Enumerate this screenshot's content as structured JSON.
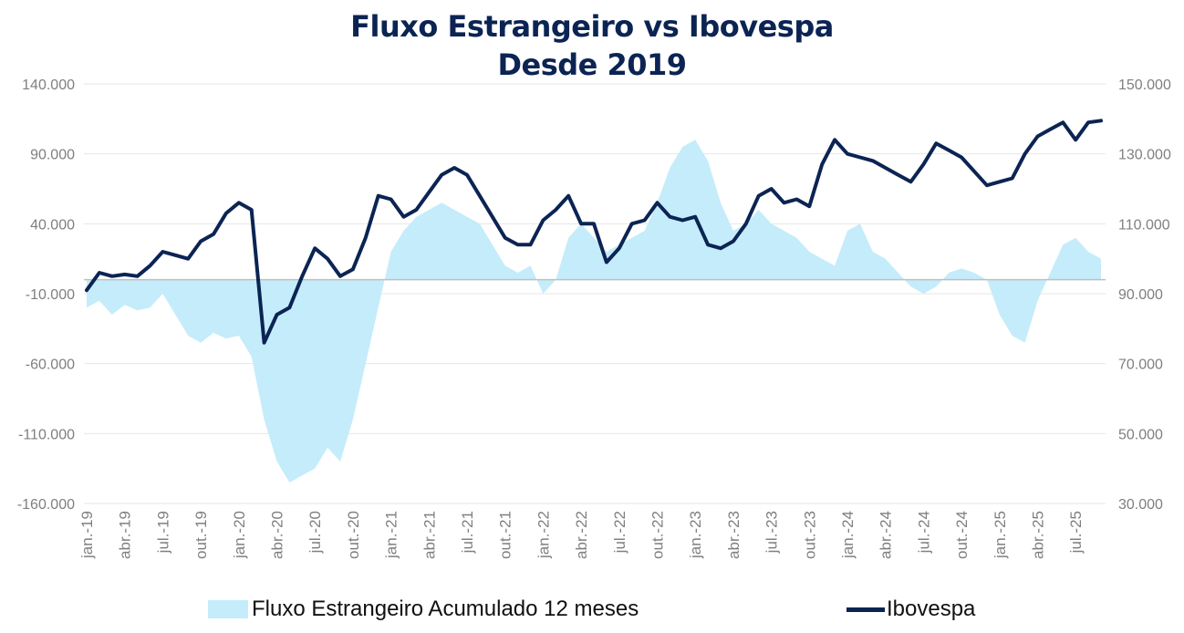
{
  "title": {
    "line1": "Fluxo Estrangeiro vs Ibovespa",
    "line2": "Desde 2019"
  },
  "colors": {
    "area_fill": "#c5ecfa",
    "line": "#0b2453",
    "grid": "#e6e6e6",
    "baseline": "#bfbfbf",
    "tick_text": "#7f7f7f",
    "title": "#0b2453"
  },
  "legend": {
    "area_label": "Fluxo Estrangeiro Acumulado 12 meses",
    "line_label": "Ibovespa"
  },
  "chart_data": {
    "type": "area+line",
    "title": "Fluxo Estrangeiro vs Ibovespa Desde 2019",
    "grid": true,
    "legend_position": "bottom",
    "x_tick_labels": [
      "jan.-19",
      "abr.-19",
      "jul.-19",
      "out.-19",
      "jan.-20",
      "abr.-20",
      "jul.-20",
      "out.-20",
      "jan.-21",
      "abr.-21",
      "jul.-21",
      "out.-21",
      "jan.-22",
      "abr.-22",
      "jul.-22",
      "out.-22",
      "jan.-23",
      "abr.-23",
      "jul.-23",
      "out.-23",
      "jan.-24",
      "abr.-24",
      "jul.-24",
      "out.-24",
      "jan.-25",
      "abr.-25",
      "jul.-25"
    ],
    "y_left": {
      "min": -160000,
      "max": 140000,
      "ticks": [
        140000,
        90000,
        40000,
        -10000,
        -60000,
        -110000,
        -160000
      ],
      "tick_labels": [
        "140.000",
        "90.000",
        "40.000",
        "-10.000",
        "-60.000",
        "-110.000",
        "-160.000"
      ]
    },
    "y_right": {
      "min": 30000,
      "max": 150000,
      "ticks": [
        150000,
        130000,
        110000,
        90000,
        70000,
        50000,
        30000
      ],
      "tick_labels": [
        "150.000",
        "130.000",
        "110.000",
        "90.000",
        "70.000",
        "50.000",
        "30.000"
      ]
    },
    "x": [
      "2019-01",
      "2019-02",
      "2019-03",
      "2019-04",
      "2019-05",
      "2019-06",
      "2019-07",
      "2019-08",
      "2019-09",
      "2019-10",
      "2019-11",
      "2019-12",
      "2020-01",
      "2020-02",
      "2020-03",
      "2020-04",
      "2020-05",
      "2020-06",
      "2020-07",
      "2020-08",
      "2020-09",
      "2020-10",
      "2020-11",
      "2020-12",
      "2021-01",
      "2021-02",
      "2021-03",
      "2021-04",
      "2021-05",
      "2021-06",
      "2021-07",
      "2021-08",
      "2021-09",
      "2021-10",
      "2021-11",
      "2021-12",
      "2022-01",
      "2022-02",
      "2022-03",
      "2022-04",
      "2022-05",
      "2022-06",
      "2022-07",
      "2022-08",
      "2022-09",
      "2022-10",
      "2022-11",
      "2022-12",
      "2023-01",
      "2023-02",
      "2023-03",
      "2023-04",
      "2023-05",
      "2023-06",
      "2023-07",
      "2023-08",
      "2023-09",
      "2023-10",
      "2023-11",
      "2023-12",
      "2024-01",
      "2024-02",
      "2024-03",
      "2024-04",
      "2024-05",
      "2024-06",
      "2024-07",
      "2024-08",
      "2024-09",
      "2024-10",
      "2024-11",
      "2024-12",
      "2025-01",
      "2025-02",
      "2025-03",
      "2025-04",
      "2025-05",
      "2025-06",
      "2025-07",
      "2025-08",
      "2025-09"
    ],
    "series": [
      {
        "name": "Fluxo Estrangeiro Acumulado 12 meses",
        "axis": "left",
        "kind": "area",
        "values": [
          -20000,
          -15000,
          -25000,
          -18000,
          -22000,
          -20000,
          -10000,
          -25000,
          -40000,
          -45000,
          -38000,
          -42000,
          -40000,
          -55000,
          -100000,
          -130000,
          -145000,
          -140000,
          -135000,
          -120000,
          -130000,
          -100000,
          -60000,
          -20000,
          20000,
          35000,
          45000,
          50000,
          55000,
          50000,
          45000,
          40000,
          25000,
          10000,
          5000,
          10000,
          -10000,
          0,
          30000,
          40000,
          30000,
          20000,
          25000,
          30000,
          35000,
          55000,
          80000,
          95000,
          100000,
          85000,
          55000,
          35000,
          40000,
          50000,
          40000,
          35000,
          30000,
          20000,
          15000,
          10000,
          35000,
          40000,
          20000,
          15000,
          5000,
          -5000,
          -10000,
          -5000,
          5000,
          8000,
          5000,
          0,
          -25000,
          -40000,
          -45000,
          -15000,
          5000,
          25000,
          30000,
          20000,
          15000
        ]
      },
      {
        "name": "Ibovespa",
        "axis": "right",
        "kind": "line",
        "values": [
          91000,
          96000,
          95000,
          95500,
          95000,
          98000,
          102000,
          101000,
          100000,
          105000,
          107000,
          113000,
          116000,
          114000,
          76000,
          84000,
          86000,
          95000,
          103000,
          100000,
          95000,
          97000,
          106000,
          118000,
          117000,
          112000,
          114000,
          119000,
          124000,
          126000,
          124000,
          118000,
          112000,
          106000,
          104000,
          104000,
          111000,
          114000,
          118000,
          110000,
          110000,
          99000,
          103000,
          110000,
          111000,
          116000,
          112000,
          111000,
          112000,
          104000,
          103000,
          105000,
          110000,
          118000,
          120000,
          116000,
          117000,
          115000,
          127000,
          134000,
          130000,
          129000,
          128000,
          126000,
          124000,
          122000,
          127000,
          133000,
          131000,
          129000,
          125000,
          121000,
          122000,
          123000,
          130000,
          135000,
          137000,
          139000,
          134000,
          139000,
          139500
        ]
      }
    ]
  }
}
